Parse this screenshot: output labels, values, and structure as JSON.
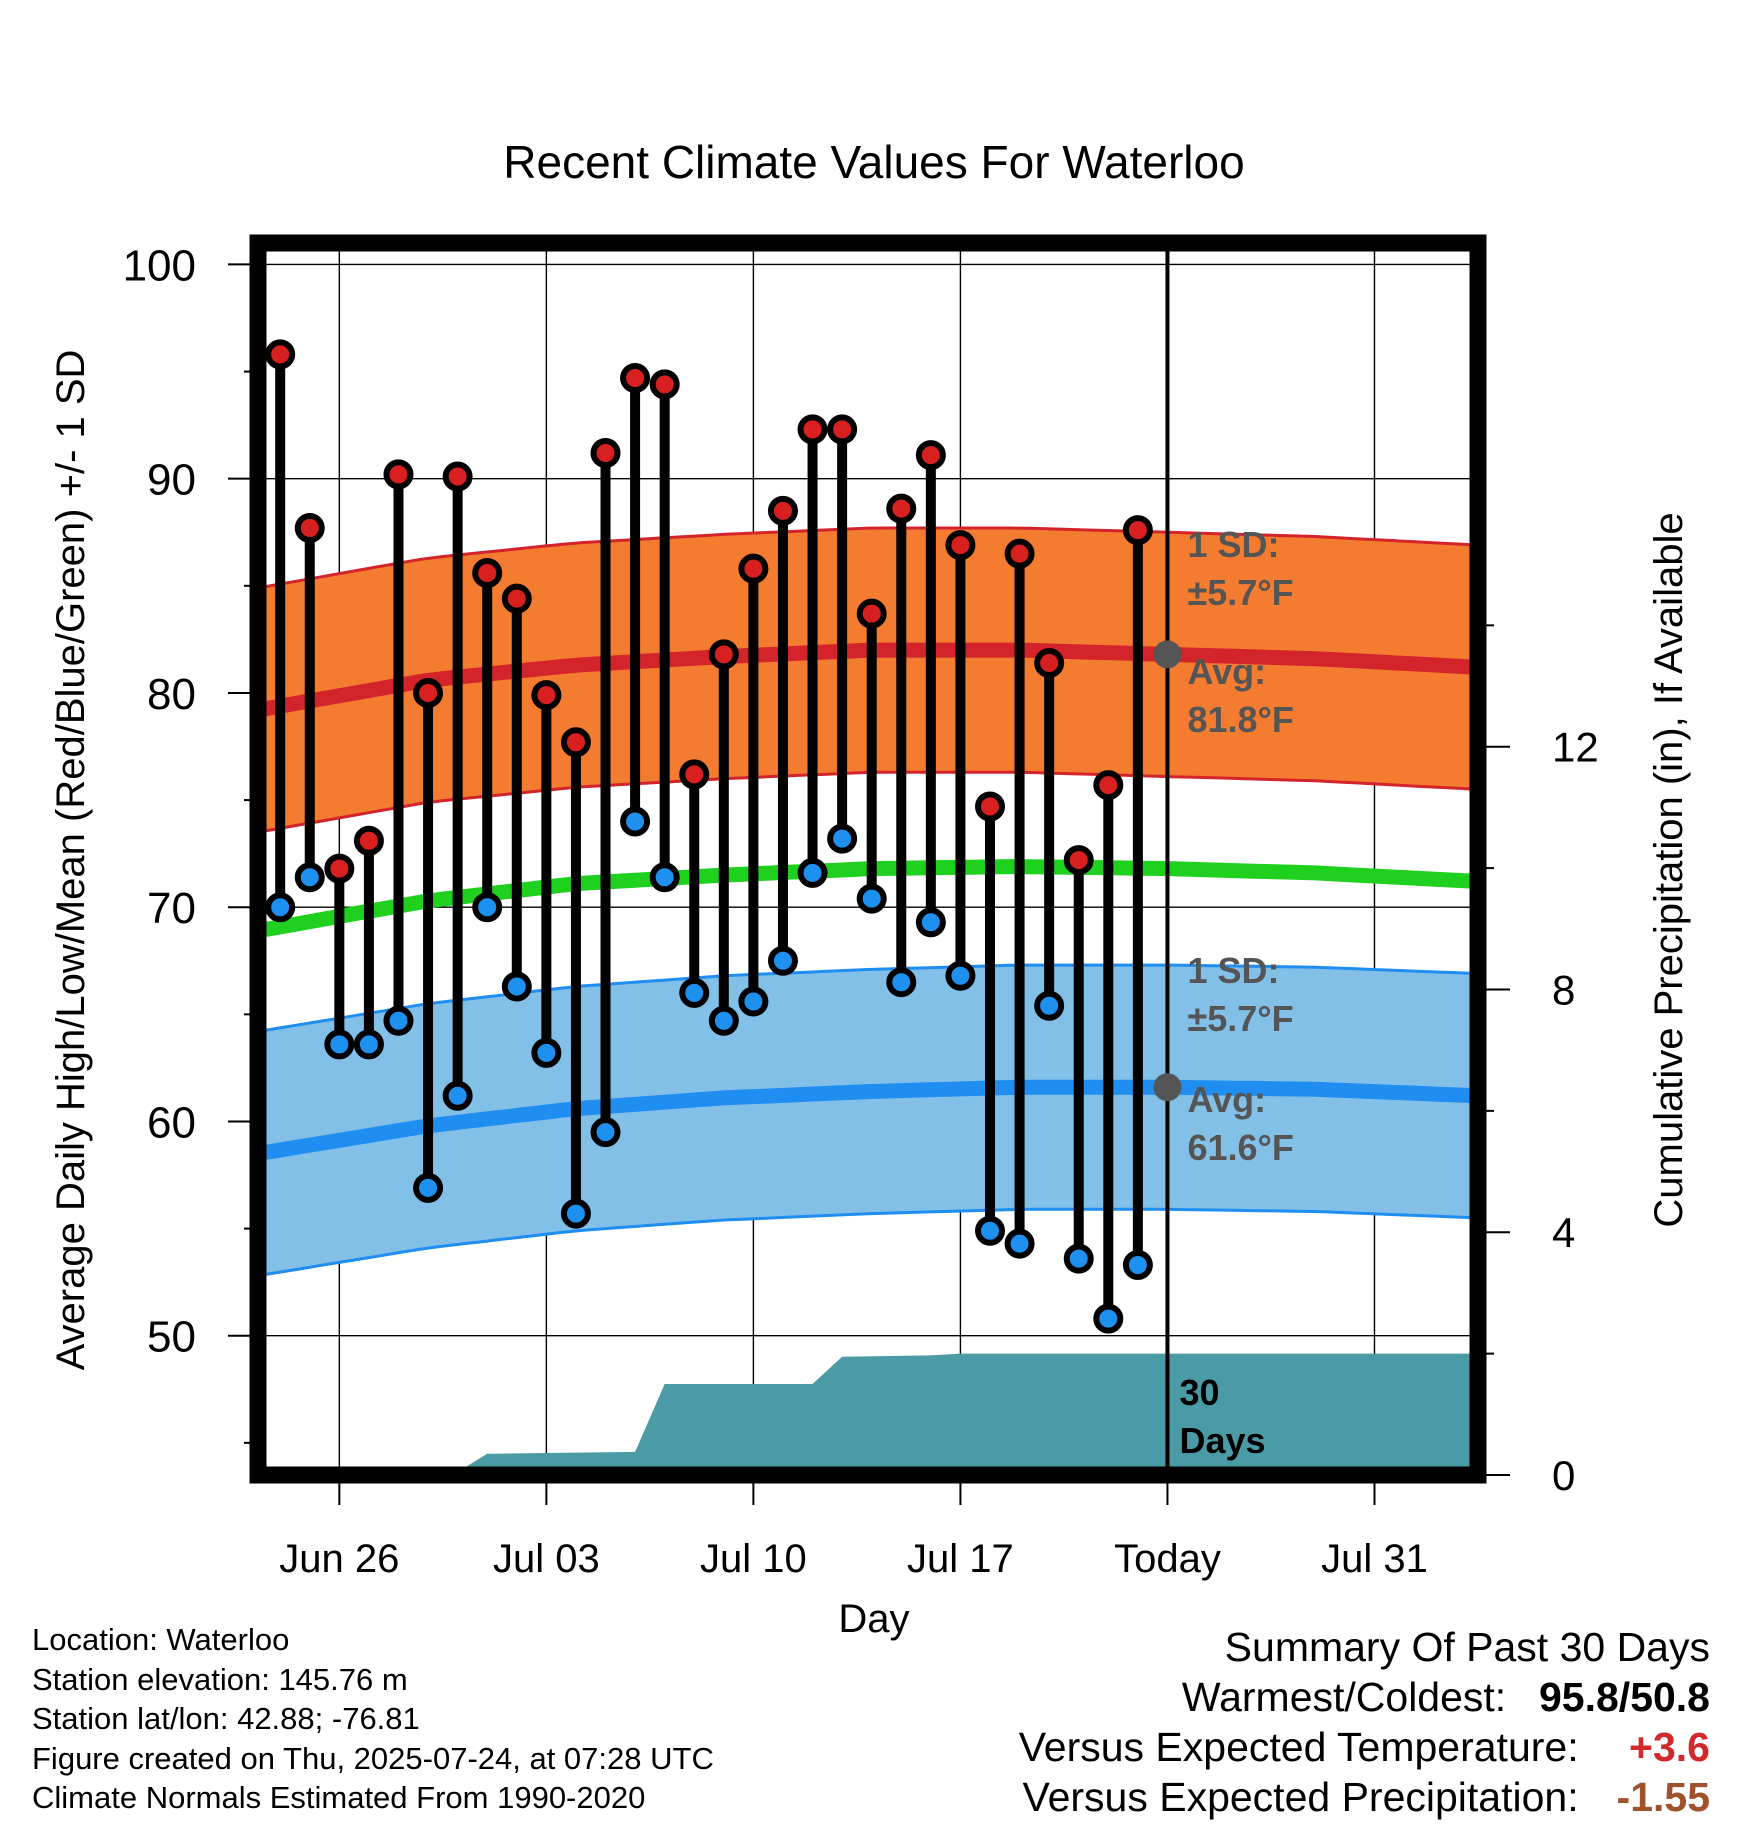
{
  "chart_data": {
    "type": "line",
    "title": "Recent Climate Values For Waterloo",
    "xlabel": "Day",
    "ylabel": "Average Daily High/Low/Mean (Red/Blue/Green) +/- 1 SD",
    "y2label": "Cumulative Precipitation (in), If Available",
    "ylim": [
      43.5,
      101
    ],
    "y2lim": [
      0,
      20.3
    ],
    "x_ticks": [
      {
        "day": 2,
        "label": "Jun 26"
      },
      {
        "day": 9,
        "label": "Jul 03"
      },
      {
        "day": 16,
        "label": "Jul 10"
      },
      {
        "day": 23,
        "label": "Jul 17"
      },
      {
        "day": 30,
        "label": "Today"
      },
      {
        "day": 37,
        "label": "Jul 31"
      }
    ],
    "x_range_days": [
      -0.75,
      40.5
    ],
    "y_ticks": [
      50,
      60,
      70,
      80,
      90,
      100
    ],
    "y2_ticks": [
      0,
      4,
      8,
      12
    ],
    "grid": true,
    "today_day": 30,
    "daily_high": [
      95.8,
      87.7,
      71.8,
      73.1,
      90.2,
      80.0,
      90.1,
      85.6,
      84.4,
      79.9,
      77.7,
      91.2,
      94.7,
      94.4,
      76.2,
      81.8,
      85.8,
      88.5,
      92.3,
      92.3,
      83.7,
      88.6,
      91.1,
      86.9,
      74.7,
      86.5,
      81.4,
      72.2,
      75.7,
      87.6
    ],
    "daily_low": [
      70.0,
      71.4,
      63.6,
      63.6,
      64.7,
      56.9,
      61.2,
      70.0,
      66.3,
      63.2,
      55.7,
      59.5,
      74.0,
      71.4,
      66.0,
      64.7,
      65.6,
      67.5,
      71.6,
      73.2,
      70.4,
      66.5,
      69.3,
      66.8,
      54.9,
      54.3,
      65.4,
      53.6,
      50.8,
      53.3
    ],
    "normal_high": {
      "x": [
        -0.75,
        5,
        10,
        15,
        20,
        25,
        30,
        35,
        40.5
      ],
      "avg": [
        79.2,
        80.6,
        81.3,
        81.7,
        82.0,
        82.0,
        81.8,
        81.6,
        81.2
      ],
      "sd": 5.7
    },
    "normal_low": {
      "x": [
        -0.75,
        5,
        10,
        15,
        20,
        25,
        30,
        35,
        40.5
      ],
      "avg": [
        58.5,
        59.8,
        60.6,
        61.1,
        61.4,
        61.6,
        61.6,
        61.5,
        61.2
      ],
      "sd": 5.7
    },
    "normal_mean": {
      "x": [
        -0.75,
        5,
        10,
        15,
        20,
        25,
        30,
        35,
        40.5
      ],
      "avg": [
        68.9,
        70.3,
        71.1,
        71.5,
        71.8,
        71.9,
        71.8,
        71.6,
        71.2
      ]
    },
    "precip_cumulative": {
      "x": [
        -0.75,
        3,
        5,
        6,
        7,
        12,
        13,
        18,
        19,
        22,
        23,
        30,
        40.5
      ],
      "y": [
        0,
        0,
        0.05,
        0.05,
        0.35,
        0.38,
        1.5,
        1.5,
        1.95,
        1.97,
        2.0,
        2.0,
        2.0
      ]
    },
    "annotations": {
      "high_sd_label": [
        "1 SD:",
        "±5.7°F"
      ],
      "high_avg_label": [
        "Avg:",
        "81.8°F"
      ],
      "low_sd_label": [
        "1 SD:",
        "±5.7°F"
      ],
      "low_avg_label": [
        "Avg:",
        "61.6°F"
      ],
      "precip_label": [
        "30",
        "Days"
      ]
    },
    "colors": {
      "high_band": "#f47c30",
      "high_line": "#d4242b",
      "low_band": "#83c0e8",
      "low_line": "#1f8ef0",
      "mean_line": "#1fd01f",
      "precip_fill": "#4a9ba5",
      "marker_high": "#d92020",
      "marker_low": "#1e90f0",
      "annotation": "#555555"
    }
  },
  "footer": {
    "location": "Location: Waterloo",
    "elevation": "Station elevation: 145.76 m",
    "latlon": "Station lat/lon: 42.88; -76.81",
    "created": "Figure created on Thu, 2025-07-24, at 07:28 UTC",
    "normals": "Climate Normals Estimated From 1990-2020"
  },
  "summary": {
    "title": "Summary Of Past 30 Days",
    "warm_cold_label": "Warmest/Coldest:",
    "warm_cold_value": "95.8/50.8",
    "temp_label": "Versus Expected Temperature:",
    "temp_value": "+3.6",
    "temp_color": "#d22a2a",
    "precip_label": "Versus Expected Precipitation:",
    "precip_value": "-1.55",
    "precip_color": "#a0522d"
  }
}
